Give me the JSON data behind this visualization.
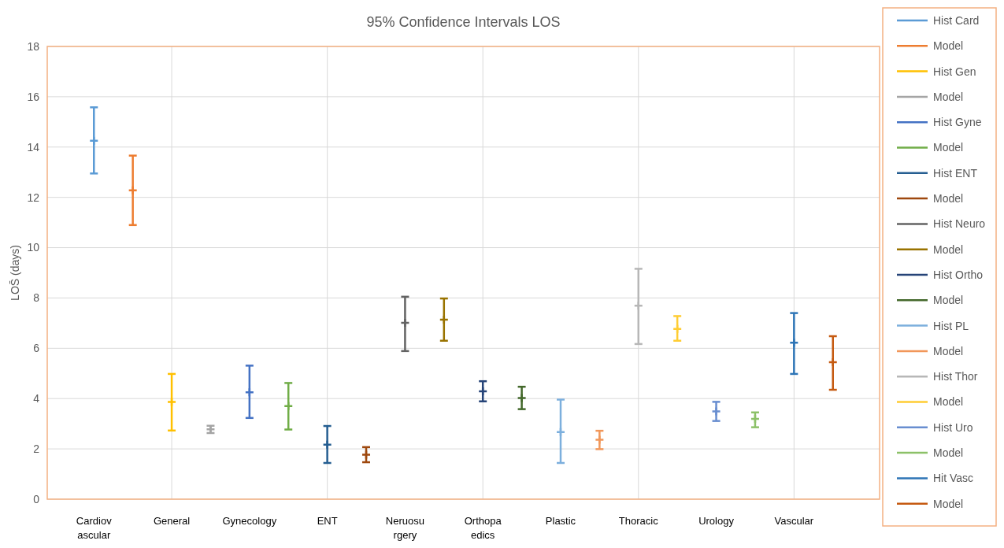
{
  "chart_data": {
    "type": "scatter",
    "title": "95% Confidence Intervals LOS",
    "ylabel": "LOS̄ (days)",
    "marker": "cross",
    "categories": [
      "Cardiovascular",
      null,
      "General",
      null,
      "Gynecology",
      null,
      "ENT",
      null,
      "Neruosurgery",
      null,
      "Orthopaedics",
      null,
      "Plastic",
      null,
      "Thoracic",
      null,
      "Urology",
      null,
      "Vascular",
      null
    ],
    "ylim": [
      0,
      18
    ],
    "yticks": [
      0,
      2,
      4,
      6,
      8,
      10,
      12,
      14,
      16,
      18
    ],
    "grid": true,
    "legend": "right",
    "series": [
      {
        "name": "Hist Card",
        "color": "#5b9bd5",
        "values": [
          14.25,
          null,
          null,
          null,
          null,
          null,
          null,
          null,
          null,
          null,
          null,
          null,
          null,
          null,
          null,
          null,
          null,
          null,
          null,
          null
        ],
        "errors": [
          [
            12.95,
            15.58
          ],
          null,
          null,
          null,
          null,
          null,
          null,
          null,
          null,
          null,
          null,
          null,
          null,
          null,
          null,
          null,
          null,
          null,
          null,
          null
        ]
      },
      {
        "name": "Model",
        "color": "#ed7d31",
        "values": [
          null,
          12.28,
          null,
          null,
          null,
          null,
          null,
          null,
          null,
          null,
          null,
          null,
          null,
          null,
          null,
          null,
          null,
          null,
          null,
          null
        ],
        "errors": [
          null,
          [
            10.9,
            13.66
          ],
          null,
          null,
          null,
          null,
          null,
          null,
          null,
          null,
          null,
          null,
          null,
          null,
          null,
          null,
          null,
          null,
          null,
          null
        ]
      },
      {
        "name": "Hist Gen",
        "color": "#ffc000",
        "values": [
          null,
          null,
          3.87,
          null,
          null,
          null,
          null,
          null,
          null,
          null,
          null,
          null,
          null,
          null,
          null,
          null,
          null,
          null,
          null,
          null
        ],
        "errors": [
          null,
          null,
          [
            2.73,
            4.98
          ],
          null,
          null,
          null,
          null,
          null,
          null,
          null,
          null,
          null,
          null,
          null,
          null,
          null,
          null,
          null,
          null,
          null
        ]
      },
      {
        "name": "Model",
        "color": "#a5a5a5",
        "values": [
          null,
          null,
          null,
          2.78,
          null,
          null,
          null,
          null,
          null,
          null,
          null,
          null,
          null,
          null,
          null,
          null,
          null,
          null,
          null,
          null
        ],
        "errors": [
          null,
          null,
          null,
          [
            2.63,
            2.92
          ],
          null,
          null,
          null,
          null,
          null,
          null,
          null,
          null,
          null,
          null,
          null,
          null,
          null,
          null,
          null,
          null
        ]
      },
      {
        "name": "Hist Gyne",
        "color": "#4472c4",
        "values": [
          null,
          null,
          null,
          null,
          4.25,
          null,
          null,
          null,
          null,
          null,
          null,
          null,
          null,
          null,
          null,
          null,
          null,
          null,
          null,
          null
        ],
        "errors": [
          null,
          null,
          null,
          null,
          [
            3.23,
            5.31
          ],
          null,
          null,
          null,
          null,
          null,
          null,
          null,
          null,
          null,
          null,
          null,
          null,
          null,
          null,
          null
        ]
      },
      {
        "name": "Model",
        "color": "#70ad47",
        "values": [
          null,
          null,
          null,
          null,
          null,
          3.7,
          null,
          null,
          null,
          null,
          null,
          null,
          null,
          null,
          null,
          null,
          null,
          null,
          null,
          null
        ],
        "errors": [
          null,
          null,
          null,
          null,
          null,
          [
            2.77,
            4.62
          ],
          null,
          null,
          null,
          null,
          null,
          null,
          null,
          null,
          null,
          null,
          null,
          null,
          null,
          null
        ]
      },
      {
        "name": "Hist ENT",
        "color": "#255e91",
        "values": [
          null,
          null,
          null,
          null,
          null,
          null,
          2.17,
          null,
          null,
          null,
          null,
          null,
          null,
          null,
          null,
          null,
          null,
          null,
          null,
          null
        ],
        "errors": [
          null,
          null,
          null,
          null,
          null,
          null,
          [
            1.44,
            2.91
          ],
          null,
          null,
          null,
          null,
          null,
          null,
          null,
          null,
          null,
          null,
          null,
          null,
          null
        ]
      },
      {
        "name": "Model",
        "color": "#9e480e",
        "values": [
          null,
          null,
          null,
          null,
          null,
          null,
          null,
          1.77,
          null,
          null,
          null,
          null,
          null,
          null,
          null,
          null,
          null,
          null,
          null,
          null
        ],
        "errors": [
          null,
          null,
          null,
          null,
          null,
          null,
          null,
          [
            1.47,
            2.07
          ],
          null,
          null,
          null,
          null,
          null,
          null,
          null,
          null,
          null,
          null,
          null,
          null
        ]
      },
      {
        "name": "Hist Neuro",
        "color": "#636363",
        "values": [
          null,
          null,
          null,
          null,
          null,
          null,
          null,
          null,
          7.01,
          null,
          null,
          null,
          null,
          null,
          null,
          null,
          null,
          null,
          null,
          null
        ],
        "errors": [
          null,
          null,
          null,
          null,
          null,
          null,
          null,
          null,
          [
            5.89,
            8.05
          ],
          null,
          null,
          null,
          null,
          null,
          null,
          null,
          null,
          null,
          null,
          null
        ]
      },
      {
        "name": "Model",
        "color": "#997300",
        "values": [
          null,
          null,
          null,
          null,
          null,
          null,
          null,
          null,
          null,
          7.14,
          null,
          null,
          null,
          null,
          null,
          null,
          null,
          null,
          null,
          null
        ],
        "errors": [
          null,
          null,
          null,
          null,
          null,
          null,
          null,
          null,
          null,
          [
            6.3,
            7.98
          ],
          null,
          null,
          null,
          null,
          null,
          null,
          null,
          null,
          null,
          null
        ]
      },
      {
        "name": "Hist Ortho",
        "color": "#264478",
        "values": [
          null,
          null,
          null,
          null,
          null,
          null,
          null,
          null,
          null,
          null,
          4.29,
          null,
          null,
          null,
          null,
          null,
          null,
          null,
          null,
          null
        ],
        "errors": [
          null,
          null,
          null,
          null,
          null,
          null,
          null,
          null,
          null,
          null,
          [
            3.89,
            4.69
          ],
          null,
          null,
          null,
          null,
          null,
          null,
          null,
          null,
          null
        ]
      },
      {
        "name": "Model",
        "color": "#43682b",
        "values": [
          null,
          null,
          null,
          null,
          null,
          null,
          null,
          null,
          null,
          null,
          null,
          4.02,
          null,
          null,
          null,
          null,
          null,
          null,
          null,
          null
        ],
        "errors": [
          null,
          null,
          null,
          null,
          null,
          null,
          null,
          null,
          null,
          null,
          null,
          [
            3.58,
            4.47
          ],
          null,
          null,
          null,
          null,
          null,
          null,
          null,
          null
        ]
      },
      {
        "name": "Hist PL",
        "color": "#7cafdd",
        "values": [
          null,
          null,
          null,
          null,
          null,
          null,
          null,
          null,
          null,
          null,
          null,
          null,
          2.67,
          null,
          null,
          null,
          null,
          null,
          null,
          null
        ],
        "errors": [
          null,
          null,
          null,
          null,
          null,
          null,
          null,
          null,
          null,
          null,
          null,
          null,
          [
            1.44,
            3.96
          ],
          null,
          null,
          null,
          null,
          null,
          null,
          null
        ]
      },
      {
        "name": "Model",
        "color": "#f1975a",
        "values": [
          null,
          null,
          null,
          null,
          null,
          null,
          null,
          null,
          null,
          null,
          null,
          null,
          null,
          2.36,
          null,
          null,
          null,
          null,
          null,
          null
        ],
        "errors": [
          null,
          null,
          null,
          null,
          null,
          null,
          null,
          null,
          null,
          null,
          null,
          null,
          null,
          [
            1.99,
            2.72
          ],
          null,
          null,
          null,
          null,
          null,
          null
        ]
      },
      {
        "name": "Hist Thor",
        "color": "#b7b7b7",
        "values": [
          null,
          null,
          null,
          null,
          null,
          null,
          null,
          null,
          null,
          null,
          null,
          null,
          null,
          null,
          7.69,
          null,
          null,
          null,
          null,
          null
        ],
        "errors": [
          null,
          null,
          null,
          null,
          null,
          null,
          null,
          null,
          null,
          null,
          null,
          null,
          null,
          null,
          [
            6.17,
            9.16
          ],
          null,
          null,
          null,
          null,
          null
        ]
      },
      {
        "name": "Model",
        "color": "#ffcd33",
        "values": [
          null,
          null,
          null,
          null,
          null,
          null,
          null,
          null,
          null,
          null,
          null,
          null,
          null,
          null,
          null,
          6.77,
          null,
          null,
          null,
          null
        ],
        "errors": [
          null,
          null,
          null,
          null,
          null,
          null,
          null,
          null,
          null,
          null,
          null,
          null,
          null,
          null,
          null,
          [
            6.3,
            7.28
          ],
          null,
          null,
          null,
          null
        ]
      },
      {
        "name": "Hist Uro",
        "color": "#698ed0",
        "values": [
          null,
          null,
          null,
          null,
          null,
          null,
          null,
          null,
          null,
          null,
          null,
          null,
          null,
          null,
          null,
          null,
          3.49,
          null,
          null,
          null
        ],
        "errors": [
          null,
          null,
          null,
          null,
          null,
          null,
          null,
          null,
          null,
          null,
          null,
          null,
          null,
          null,
          null,
          null,
          [
            3.11,
            3.87
          ],
          null,
          null,
          null
        ]
      },
      {
        "name": "Model",
        "color": "#8cc168",
        "values": [
          null,
          null,
          null,
          null,
          null,
          null,
          null,
          null,
          null,
          null,
          null,
          null,
          null,
          null,
          null,
          null,
          null,
          3.19,
          null,
          null
        ],
        "errors": [
          null,
          null,
          null,
          null,
          null,
          null,
          null,
          null,
          null,
          null,
          null,
          null,
          null,
          null,
          null,
          null,
          null,
          [
            2.86,
            3.45
          ],
          null,
          null
        ]
      },
      {
        "name": "Hit Vasc",
        "color": "#2e75b6",
        "values": [
          null,
          null,
          null,
          null,
          null,
          null,
          null,
          null,
          null,
          null,
          null,
          null,
          null,
          null,
          null,
          null,
          null,
          null,
          6.22,
          null
        ],
        "errors": [
          null,
          null,
          null,
          null,
          null,
          null,
          null,
          null,
          null,
          null,
          null,
          null,
          null,
          null,
          null,
          null,
          null,
          null,
          [
            4.98,
            7.4
          ],
          null
        ]
      },
      {
        "name": "Model",
        "color": "#c55a11",
        "values": [
          null,
          null,
          null,
          null,
          null,
          null,
          null,
          null,
          null,
          null,
          null,
          null,
          null,
          null,
          null,
          null,
          null,
          null,
          null,
          5.45
        ],
        "errors": [
          null,
          null,
          null,
          null,
          null,
          null,
          null,
          null,
          null,
          null,
          null,
          null,
          null,
          null,
          null,
          null,
          null,
          null,
          null,
          [
            4.35,
            6.48
          ]
        ]
      }
    ]
  }
}
